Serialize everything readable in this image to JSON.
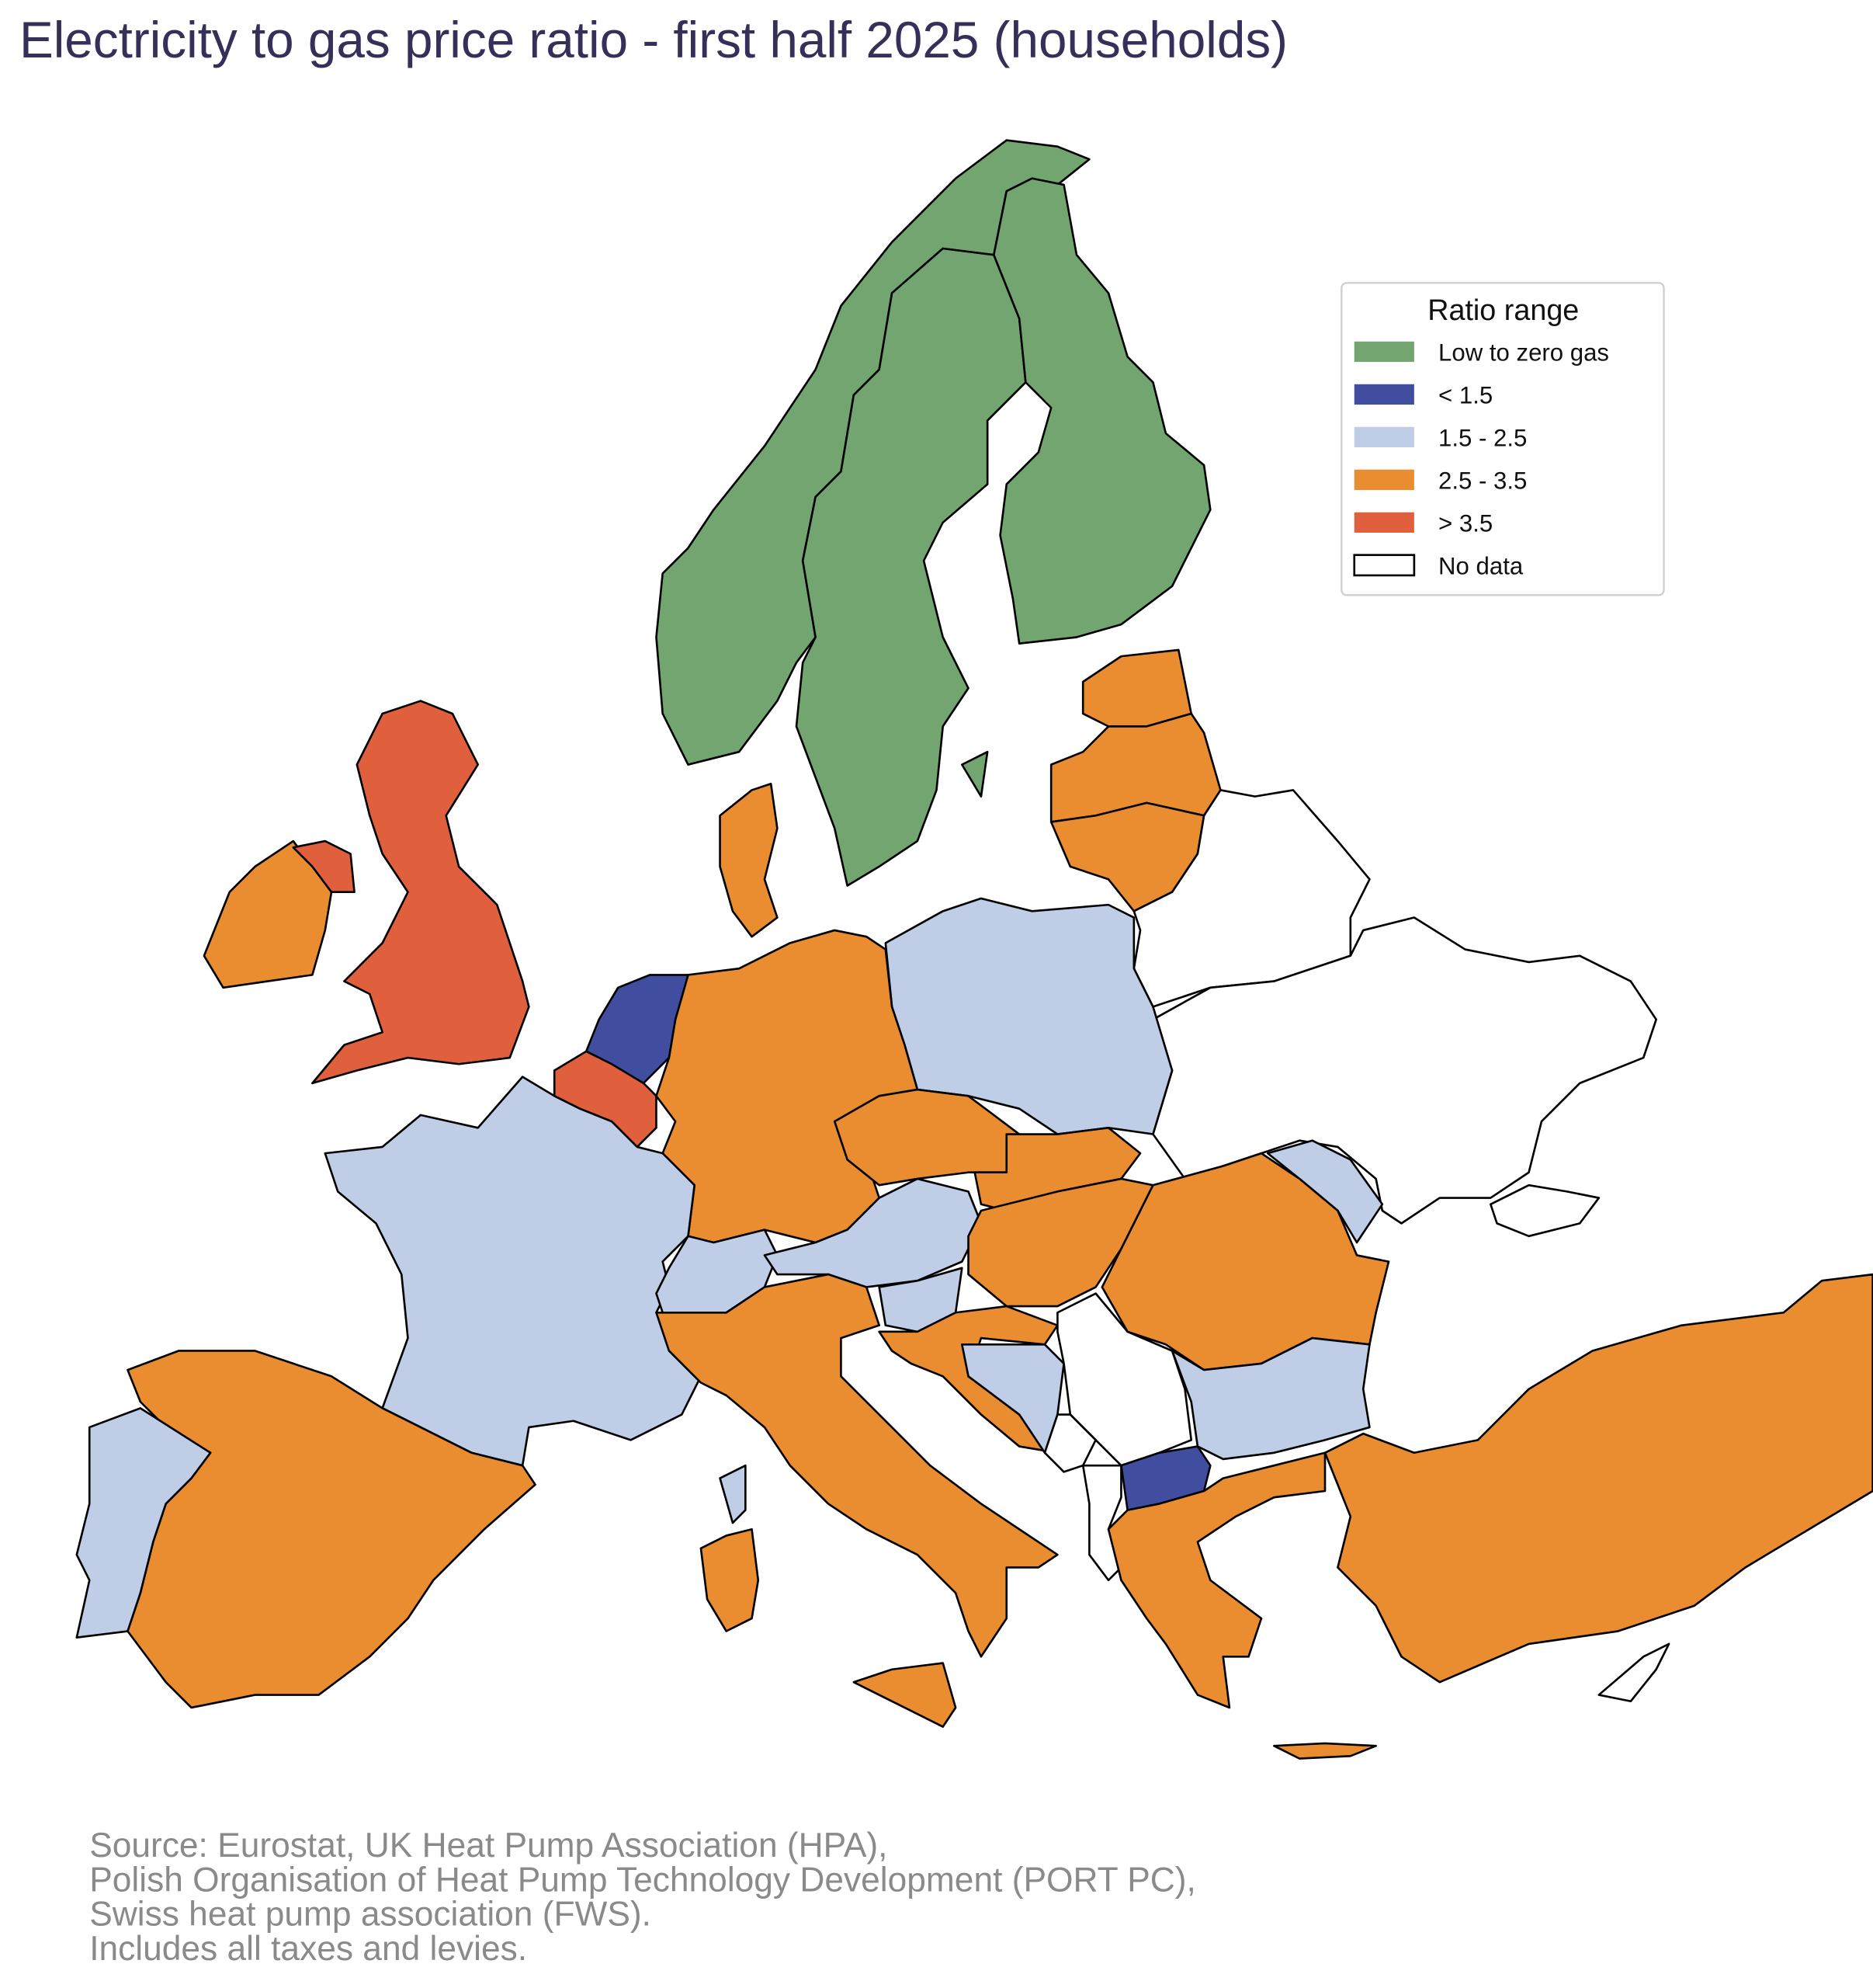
{
  "title": "Electricity to gas price ratio - first half 2025 (households)",
  "legend": {
    "title": "Ratio range",
    "items": [
      {
        "key": "low_gas",
        "label": "Low to zero gas",
        "color": "#72a56f"
      },
      {
        "key": "lt15",
        "label": "< 1.5",
        "color": "#414d9e"
      },
      {
        "key": "15_25",
        "label": "1.5 - 2.5",
        "color": "#c0cde6"
      },
      {
        "key": "25_35",
        "label": "2.5 - 3.5",
        "color": "#e98d30"
      },
      {
        "key": "gt35",
        "label": "> 3.5",
        "color": "#e0603d"
      },
      {
        "key": "nodata",
        "label": "No data",
        "color": "#ffffff"
      }
    ]
  },
  "regions": {
    "norway": "low_gas",
    "sweden": "low_gas",
    "finland": "low_gas",
    "estonia": "25_35",
    "latvia": "25_35",
    "lithuania": "25_35",
    "belarus": "nodata",
    "ukraine": "nodata",
    "crimea": "nodata",
    "moldova": "15_25",
    "poland": "15_25",
    "germany": "25_35",
    "denmark": "25_35",
    "netherlands": "lt15",
    "belgium": "gt35",
    "france": "15_25",
    "switzerland": "15_25",
    "austria": "15_25",
    "czechia": "25_35",
    "slovakia": "25_35",
    "hungary": "25_35",
    "slovenia": "15_25",
    "croatia": "25_35",
    "bosnia": "15_25",
    "serbia": "nodata",
    "montenegro": "nodata",
    "albania": "nodata",
    "north-macedonia": "lt15",
    "romania": "25_35",
    "bulgaria": "15_25",
    "greece": "25_35",
    "crete": "25_35",
    "turkey": "25_35",
    "italy": "25_35",
    "sicily": "25_35",
    "sardinia": "25_35",
    "corsica": "15_25",
    "spain": "25_35",
    "portugal": "15_25",
    "ireland": "25_35",
    "northern-ireland": "gt35",
    "great-britain": "gt35",
    "gotland": "low_gas",
    "cyprus": "nodata"
  },
  "source": [
    "Source: Eurostat, UK Heat Pump Association (HPA),",
    "Polish Organisation of Heat Pump Technology Development (PORT PC),",
    "Swiss heat pump association (FWS).",
    "Includes all taxes and levies."
  ]
}
